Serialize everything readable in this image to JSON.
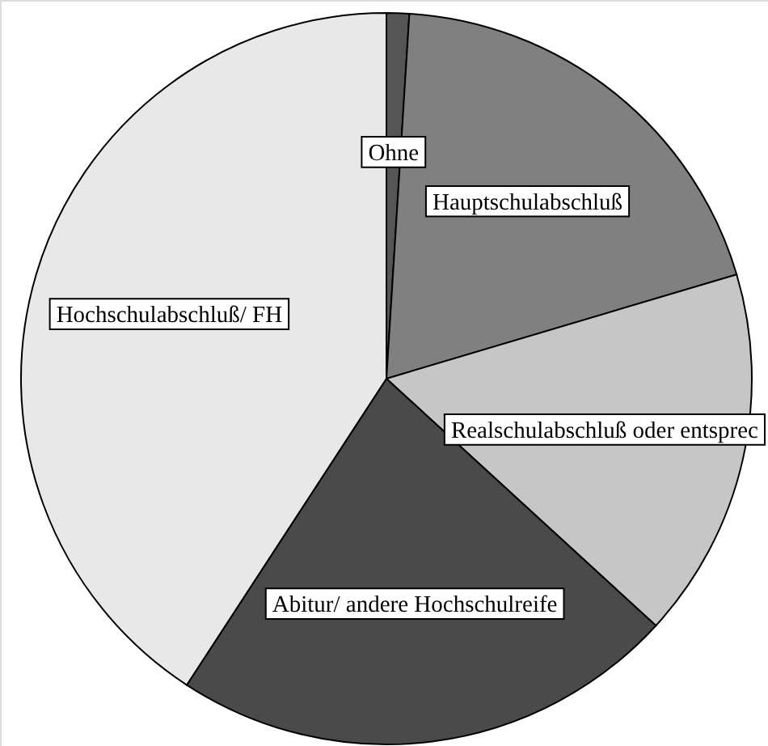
{
  "chart_data": {
    "type": "pie",
    "categories": [
      "Ohne",
      "Hauptschulabschluß",
      "Realschulabschluß oder entsprec",
      "Abitur/ andere Hochschulreife",
      "Hochschulabschluß/ FH"
    ],
    "values": [
      1.0,
      19.4,
      16.4,
      22.4,
      40.8
    ],
    "colors": [
      "#555555",
      "#808080",
      "#c6c6c6",
      "#4a4a4a",
      "#e8e8e8"
    ]
  }
}
